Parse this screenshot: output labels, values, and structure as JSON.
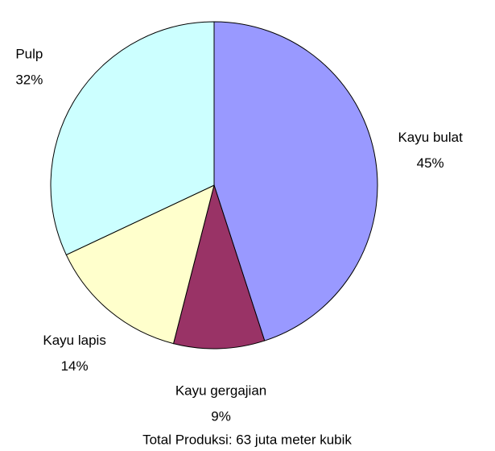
{
  "chart_data": {
    "type": "pie",
    "categories": [
      "Kayu bulat",
      "Kayu gergajian",
      "Kayu lapis",
      "Pulp"
    ],
    "values": [
      45,
      9,
      14,
      32
    ],
    "value_labels": [
      "45%",
      "9%",
      "14%",
      "32%"
    ],
    "colors": [
      "#9999ff",
      "#993366",
      "#ffffcc",
      "#ccffff"
    ],
    "caption": "Total Produksi: 63 juta meter kubik"
  }
}
